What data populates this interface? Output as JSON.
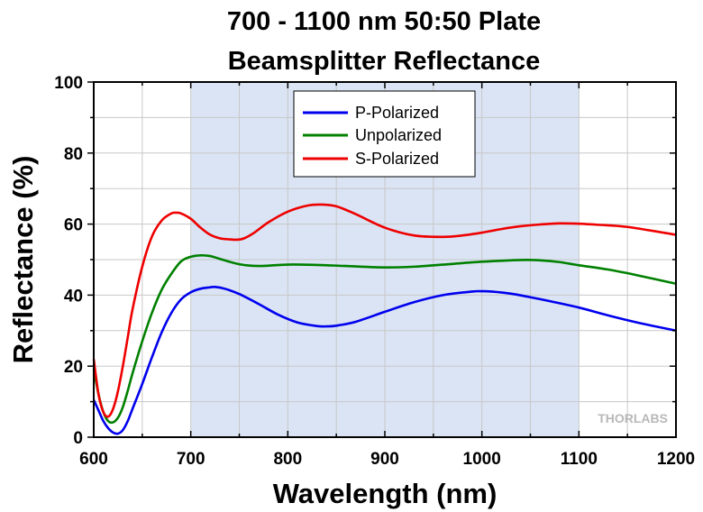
{
  "chart_data": {
    "type": "line",
    "title_line1": "700 - 1100 nm 50:50 Plate",
    "title_line2": "Beamsplitter Reflectance",
    "xlabel": "Wavelength (nm)",
    "ylabel": "Reflectance (%)",
    "xlim": [
      600,
      1200
    ],
    "ylim": [
      0,
      100
    ],
    "xticks": [
      "600",
      "700",
      "800",
      "900",
      "1000",
      "1100",
      "1200"
    ],
    "yticks": [
      "0",
      "20",
      "40",
      "60",
      "80",
      "100"
    ],
    "grid": true,
    "legend_placement": "top-center",
    "highlight_range": [
      700,
      1100
    ],
    "highlight_color": "#dae4f4",
    "watermark": "THORLABS",
    "series": [
      {
        "name": "P-Polarized",
        "color": "#0000ee",
        "x": [
          600,
          605,
          610,
          615,
          620,
          625,
          630,
          635,
          640,
          650,
          660,
          670,
          680,
          690,
          700,
          710,
          720,
          725,
          735,
          750,
          770,
          790,
          810,
          830,
          840,
          850,
          870,
          900,
          930,
          960,
          990,
          1000,
          1010,
          1030,
          1050,
          1070,
          1100,
          1130,
          1160,
          1200
        ],
        "y": [
          10.5,
          7.5,
          4.5,
          2.5,
          1.3,
          1.0,
          2.0,
          4.5,
          8.0,
          15.0,
          22.5,
          29.5,
          35.0,
          38.8,
          40.8,
          41.8,
          42.2,
          42.3,
          41.8,
          40.3,
          37.5,
          34.5,
          32.3,
          31.3,
          31.2,
          31.4,
          32.5,
          35.3,
          38.0,
          40.0,
          41.0,
          41.1,
          41.0,
          40.4,
          39.4,
          38.3,
          36.5,
          34.3,
          32.3,
          30.0
        ]
      },
      {
        "name": "Unpolarized",
        "color": "#008000",
        "x": [
          600,
          605,
          610,
          615,
          620,
          625,
          630,
          635,
          640,
          650,
          660,
          670,
          680,
          690,
          700,
          710,
          720,
          730,
          750,
          770,
          800,
          830,
          860,
          900,
          930,
          960,
          1000,
          1040,
          1060,
          1080,
          1100,
          1130,
          1160,
          1200
        ],
        "y": [
          19.0,
          12.0,
          7.0,
          4.5,
          4.2,
          5.5,
          8.5,
          13.0,
          18.0,
          27.0,
          35.0,
          41.5,
          46.0,
          49.5,
          50.8,
          51.2,
          51.0,
          50.2,
          48.7,
          48.2,
          48.6,
          48.5,
          48.2,
          47.8,
          48.0,
          48.6,
          49.4,
          49.9,
          49.8,
          49.3,
          48.4,
          47.2,
          45.6,
          43.2
        ]
      },
      {
        "name": "S-Polarized",
        "color": "#ee0000",
        "x": [
          600,
          605,
          610,
          615,
          620,
          625,
          630,
          635,
          640,
          650,
          660,
          670,
          680,
          685,
          690,
          700,
          710,
          720,
          730,
          740,
          748,
          755,
          765,
          780,
          800,
          820,
          835,
          850,
          870,
          900,
          930,
          960,
          980,
          1000,
          1020,
          1040,
          1060,
          1080,
          1100,
          1120,
          1150,
          1200
        ],
        "y": [
          22.0,
          12.0,
          7.0,
          5.8,
          8.0,
          13.0,
          20.0,
          28.0,
          36.0,
          48.0,
          56.5,
          61.0,
          63.0,
          63.2,
          63.0,
          61.5,
          59.0,
          57.0,
          56.0,
          55.7,
          55.6,
          56.0,
          57.5,
          60.5,
          63.5,
          65.2,
          65.5,
          65.0,
          62.8,
          59.0,
          56.8,
          56.4,
          56.8,
          57.6,
          58.6,
          59.4,
          59.9,
          60.2,
          60.1,
          59.8,
          59.2,
          57.0
        ]
      }
    ]
  }
}
